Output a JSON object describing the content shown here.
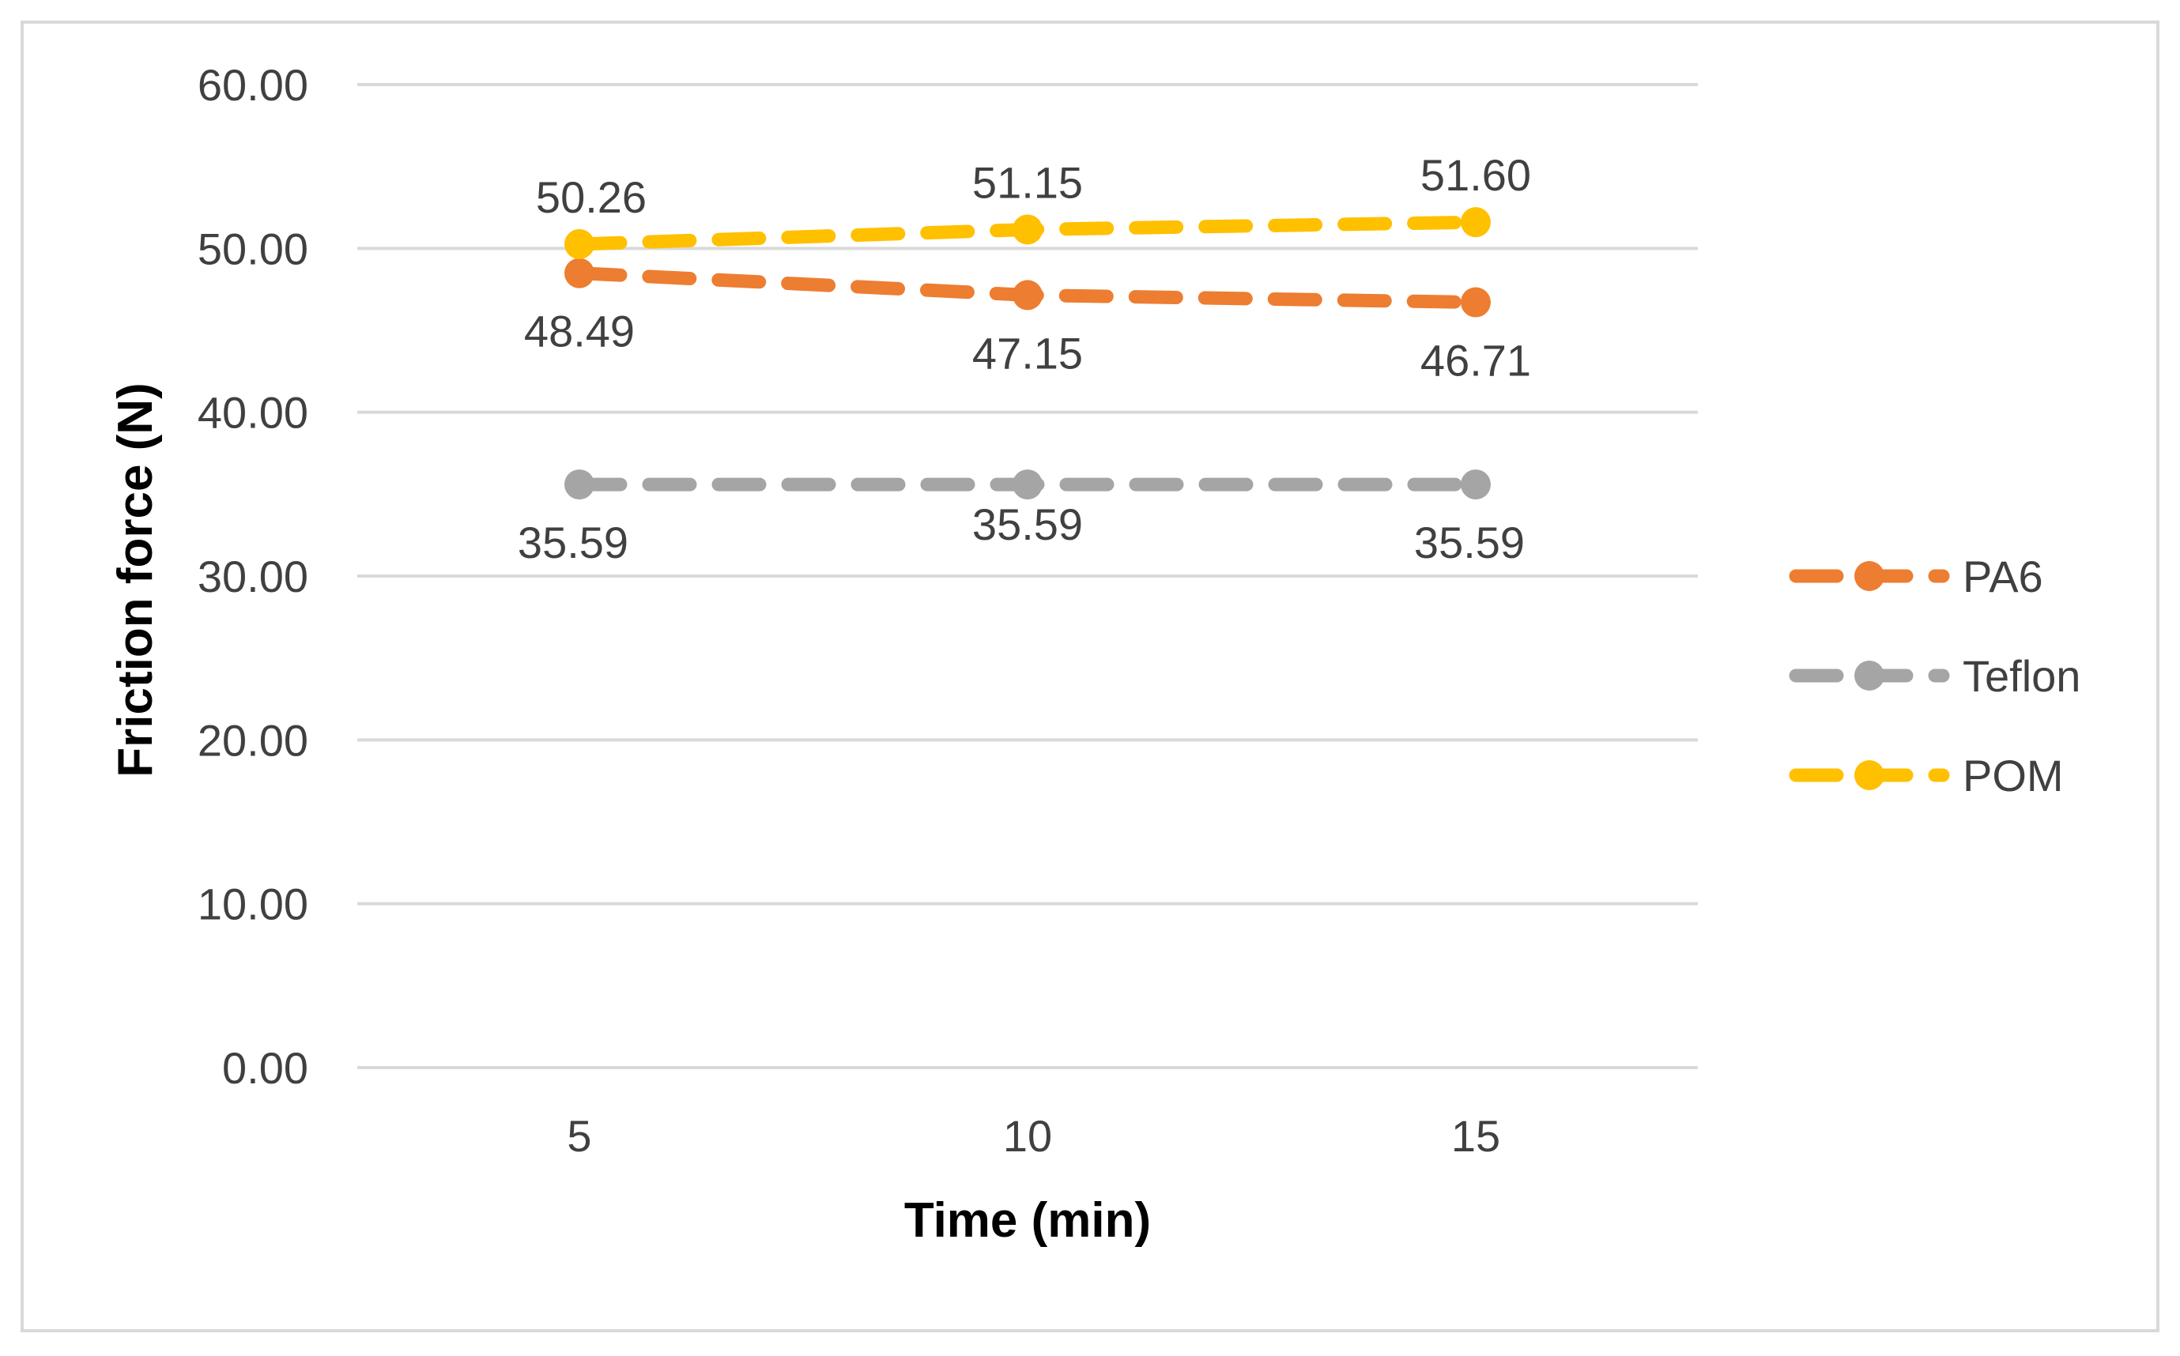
{
  "chart_data": {
    "type": "line",
    "title": "",
    "xlabel": "Time (min)",
    "ylabel": "Friction force (N)",
    "categories": [
      "5",
      "10",
      "15"
    ],
    "x": [
      5,
      10,
      15
    ],
    "ylim": [
      0,
      60
    ],
    "yticks": [
      "0.00",
      "10.00",
      "20.00",
      "30.00",
      "40.00",
      "50.00",
      "60.00"
    ],
    "grid": true,
    "legend_position": "right",
    "series": [
      {
        "name": "PA6",
        "values": [
          48.49,
          47.15,
          46.71
        ],
        "labels": [
          "48.49",
          "47.15",
          "46.71"
        ],
        "label_position": "below",
        "color": "#ED7D31"
      },
      {
        "name": "Teflon",
        "values": [
          35.59,
          35.59,
          35.59
        ],
        "labels": [
          "35.59",
          "35.59",
          "35.59"
        ],
        "label_position": "below",
        "color": "#A5A5A5"
      },
      {
        "name": "POM",
        "values": [
          50.26,
          51.15,
          51.6
        ],
        "labels": [
          "50.26",
          "51.15",
          "51.60"
        ],
        "label_position": "above",
        "color": "#FFC000"
      }
    ]
  }
}
